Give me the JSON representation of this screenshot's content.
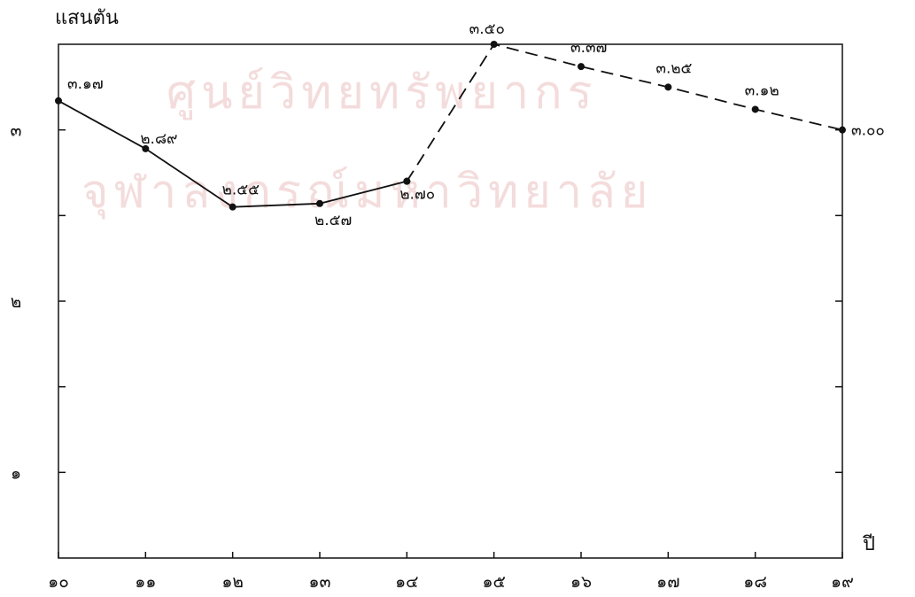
{
  "watermark": {
    "line1": "ศูนย์วิทยทรัพยากร",
    "line2": "จุฬาลงกรณ์มหาวิทยาลัย",
    "color": "#f4dcdc"
  },
  "chart_data": {
    "type": "line",
    "title": "",
    "ylabel": "แสนตัน",
    "xlabel": "ปี",
    "x": [
      10,
      11,
      12,
      13,
      14,
      15,
      16,
      17,
      18,
      19
    ],
    "x_tick_labels": [
      "๑๐",
      "๑๑",
      "๑๒",
      "๑๓",
      "๑๔",
      "๑๕",
      "๑๖",
      "๑๗",
      "๑๘",
      "๑๙"
    ],
    "xlim": [
      10,
      19
    ],
    "ylim": [
      0.5,
      3.5
    ],
    "y_ticks": [
      1,
      1.5,
      2,
      2.5,
      3
    ],
    "y_tick_labels": [
      {
        "value": 1,
        "label": "๑"
      },
      {
        "value": 2,
        "label": "๒"
      },
      {
        "value": 3,
        "label": "๓"
      }
    ],
    "series": [
      {
        "style": "solid",
        "x": [
          10,
          11,
          12,
          13,
          14
        ],
        "values": [
          3.17,
          2.89,
          2.55,
          2.57,
          2.7
        ],
        "labels": [
          "๓.๑๗",
          "๒.๘๙",
          "๒.๕๕",
          "๒.๕๗",
          "๒.๗๐"
        ]
      },
      {
        "style": "dashed",
        "x": [
          14,
          15,
          16,
          17,
          18,
          19
        ],
        "values": [
          2.7,
          3.5,
          3.37,
          3.25,
          3.12,
          3.0
        ],
        "labels": [
          "",
          "๓.๕๐",
          "๓.๓๗",
          "๓.๒๕",
          "๓.๑๒",
          "๓.๐๐"
        ]
      }
    ],
    "line_color": "#111111",
    "grid": false
  }
}
